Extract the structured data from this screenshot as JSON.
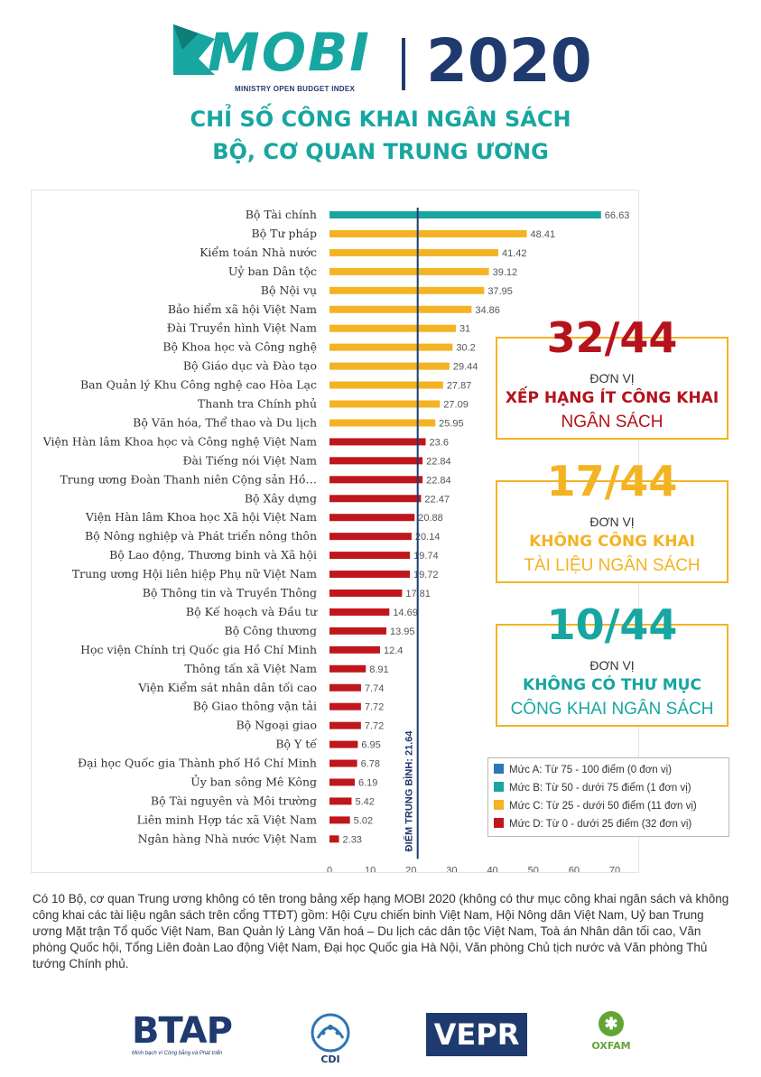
{
  "header": {
    "logo_text": "MOBI",
    "logo_subtitle": "MINISTRY OPEN BUDGET INDEX",
    "logo_icon": "mobi-logo-mark",
    "year": "2020",
    "headline_line1": "CHỈ SỐ CÔNG KHAI NGÂN SÁCH",
    "headline_line2": "BỘ, CƠ QUAN TRUNG ƯƠNG",
    "brand_color": "#17a6a0",
    "navy_color": "#1f3a6e"
  },
  "chart_data": {
    "type": "bar",
    "orientation": "horizontal",
    "categories": [
      "Bộ Tài chính",
      "Bộ Tư pháp",
      "Kiểm toán Nhà nước",
      "Uỷ ban Dân tộc",
      "Bộ Nội vụ",
      "Bảo hiểm xã hội Việt Nam",
      "Đài Truyền hình Việt Nam",
      "Bộ Khoa học và Công nghệ",
      "Bộ Giáo dục và Đào tạo",
      "Ban Quản lý Khu Công nghệ cao Hòa Lạc",
      "Thanh tra Chính phủ",
      "Bộ Văn hóa, Thể thao và Du lịch",
      "Viện Hàn lâm Khoa học và Công nghệ Việt Nam",
      "Đài Tiếng nói Việt Nam",
      "Trung ương Đoàn Thanh niên Cộng sản Hồ…",
      "Bộ Xây dựng",
      "Viện Hàn lâm Khoa học Xã hội Việt Nam",
      "Bộ Nông nghiệp và Phát triển nông thôn",
      "Bộ Lao động, Thương binh và Xã hội",
      "Trung ương Hội liên hiệp Phụ nữ Việt Nam",
      "Bộ Thông tin và Truyền Thông",
      "Bộ Kế hoạch và Đầu tư",
      "Bộ Công thương",
      "Học viện Chính trị Quốc gia Hồ Chí Minh",
      "Thông tấn xã Việt Nam",
      "Viện Kiểm sát nhân dân tối cao",
      "Bộ Giao thông vận tải",
      "Bộ Ngoại giao",
      "Bộ Y tế",
      "Đại học Quốc gia Thành phố Hồ Chí Minh",
      "Ủy ban sông Mê Kông",
      "Bộ Tài nguyên và Môi trường",
      "Liên minh Hợp tác xã Việt Nam",
      "Ngân hàng Nhà nước Việt Nam"
    ],
    "values": [
      66.63,
      48.41,
      41.42,
      39.12,
      37.95,
      34.86,
      31,
      30.2,
      29.44,
      27.87,
      27.09,
      25.95,
      23.6,
      22.84,
      22.84,
      22.47,
      20.88,
      20.14,
      19.74,
      19.72,
      17.81,
      14.69,
      13.95,
      12.4,
      8.91,
      7.74,
      7.72,
      7.72,
      6.95,
      6.78,
      6.19,
      5.42,
      5.02,
      2.33
    ],
    "value_labels": [
      "66.63",
      "48.41",
      "41.42",
      "39.12",
      "37.95",
      "34.86",
      "31",
      "30.2",
      "29.44",
      "27.87",
      "27.09",
      "25.95",
      "23.6",
      "22.84",
      "22.84",
      "22.47",
      "20.88",
      "20.14",
      "19.74",
      "19.72",
      "17.81",
      "14.69",
      "13.95",
      "12.4",
      "8.91",
      "7.74",
      "7.72",
      "7.72",
      "6.95",
      "6.78",
      "6.19",
      "5.42",
      "5.02",
      "2.33"
    ],
    "xlim": [
      0,
      70
    ],
    "xticks": [
      0,
      10,
      20,
      30,
      40,
      50,
      60,
      70
    ],
    "average": {
      "value": 21.64,
      "label": "ĐIỂM TRUNG BÌNH: 21.64",
      "color": "#1f3a6e"
    },
    "grid": false,
    "legend": {
      "placement": "bottom-right",
      "items": [
        {
          "label": "Mức A: Từ 75 - 100 điểm (0 đơn vị)",
          "color": "#2e75b6"
        },
        {
          "label": "Mức B: Từ 50 - dưới 75 điểm (1 đơn vị)",
          "color": "#17a6a0"
        },
        {
          "label": "Mức C: Từ 25 - dưới 50 điểm (11 đơn vị)",
          "color": "#f3b323"
        },
        {
          "label": "Mức D: Từ 0 - dưới 25 điểm (32 đơn vị)",
          "color": "#c0171d"
        }
      ]
    }
  },
  "stats": [
    {
      "number": "32/44",
      "unit": "ĐƠN VỊ",
      "line1": "XẾP HẠNG ÍT CÔNG KHAI",
      "line2": "NGÂN SÁCH",
      "number_color": "#b5121b",
      "line1_color": "#b5121b",
      "line2_color": "#b5121b"
    },
    {
      "number": "17/44",
      "unit": "ĐƠN VỊ",
      "line1": "KHÔNG CÔNG KHAI",
      "line2": "TÀI LIỆU NGÂN SÁCH",
      "number_color": "#f3b323",
      "line1_color": "#f3b323",
      "line2_color": "#f3b323"
    },
    {
      "number": "10/44",
      "unit": "ĐƠN VỊ",
      "line1": "KHÔNG CÓ THƯ MỤC",
      "line2": "CÔNG KHAI NGÂN SÁCH",
      "number_color": "#17a6a0",
      "line1_color": "#17a6a0",
      "line2_color": "#17a6a0"
    }
  ],
  "footnote": "Có 10 Bộ, cơ quan Trung ương không có tên trong bảng xếp hạng MOBI 2020 (không có thư mục công khai ngân sách và không công khai các tài liệu ngân sách trên cổng TTĐT) gồm: Hội Cựu chiến binh Việt Nam, Hội Nông dân Việt Nam, Uỷ ban Trung ương Mặt trận Tổ quốc Việt Nam, Ban Quản lý Làng Văn hoá – Du lịch các dân tộc Việt Nam, Toà án Nhân dân tối cao, Văn phòng Quốc hội, Tổng Liên đoàn Lao động Việt Nam, Đại học Quốc gia Hà Nội, Văn phòng Chủ tịch nước và Văn phòng Thủ tướng Chính phủ.",
  "partners": {
    "btap": "BTAP",
    "btap_tagline": "Minh bạch vì Công bằng và Phát triển",
    "cdi": "CDI",
    "vepr": "VEPR",
    "oxfam": "OXFAM",
    "oxfam_icon": "oxfam-logo-icon"
  }
}
